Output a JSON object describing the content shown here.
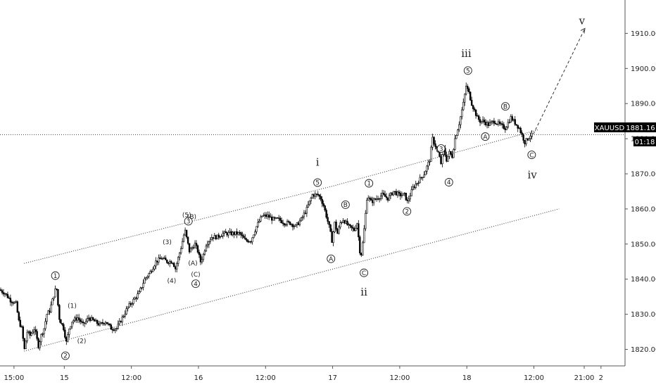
{
  "chart_data": {
    "type": "candlestick",
    "symbol": "XAUUSD",
    "price_badge": "1881.16",
    "timer_badge": "01:18",
    "y_ticks": [
      "1910.00",
      "1900.00",
      "1890.00",
      "1880.00",
      "1870.00",
      "1860.00",
      "1850.00",
      "1840.00",
      "1830.00",
      "1820.00"
    ],
    "y_tick_values": [
      1910,
      1900,
      1890,
      1880,
      1870,
      1860,
      1850,
      1840,
      1830,
      1820
    ],
    "ylim": [
      1815.3,
      1919.5
    ],
    "x_ticks": [
      "15:00",
      "15",
      "12:00",
      "16",
      "12:00",
      "17",
      "12:00",
      "18",
      "12:00",
      "21:00",
      "2"
    ],
    "x_tick_hours": [
      15,
      24,
      36,
      48,
      60,
      72,
      84,
      96,
      108,
      117,
      120
    ],
    "x_start_hour": 12.5,
    "current_price": 1881.16,
    "price_path": [
      [
        12.5,
        1837
      ],
      [
        13.5,
        1836
      ],
      [
        14.5,
        1834
      ],
      [
        15.5,
        1833
      ],
      [
        16,
        1828
      ],
      [
        16.5,
        1826
      ],
      [
        17,
        1820
      ],
      [
        17.5,
        1825
      ],
      [
        18,
        1824
      ],
      [
        18.8,
        1826
      ],
      [
        19.5,
        1821
      ],
      [
        20,
        1824
      ],
      [
        20.5,
        1826
      ],
      [
        21,
        1830
      ],
      [
        21.5,
        1831
      ],
      [
        22,
        1834
      ],
      [
        22.7,
        1838
      ],
      [
        23.2,
        1829
      ],
      [
        24,
        1826
      ],
      [
        24.5,
        1822
      ],
      [
        25,
        1826
      ],
      [
        25.5,
        1828
      ],
      [
        26.5,
        1829
      ],
      [
        27.5,
        1827
      ],
      [
        28.5,
        1829
      ],
      [
        29.5,
        1828
      ],
      [
        30.5,
        1827
      ],
      [
        31.5,
        1828
      ],
      [
        32.5,
        1826
      ],
      [
        33.5,
        1826
      ],
      [
        34.5,
        1829
      ],
      [
        35.5,
        1832
      ],
      [
        36.5,
        1834
      ],
      [
        37.5,
        1836
      ],
      [
        38.5,
        1840
      ],
      [
        39.5,
        1842
      ],
      [
        40.5,
        1845
      ],
      [
        41.5,
        1846
      ],
      [
        42.5,
        1845
      ],
      [
        43.5,
        1845
      ],
      [
        44,
        1843
      ],
      [
        45,
        1849
      ],
      [
        45.7,
        1854
      ],
      [
        46.5,
        1848
      ],
      [
        47.5,
        1850
      ],
      [
        48,
        1848
      ],
      [
        48.5,
        1845
      ],
      [
        49,
        1847
      ],
      [
        49.5,
        1850
      ],
      [
        50.5,
        1852
      ],
      [
        51.5,
        1852
      ],
      [
        52.5,
        1853
      ],
      [
        53.5,
        1853
      ],
      [
        54.5,
        1853
      ],
      [
        55.5,
        1853
      ],
      [
        56.5,
        1851
      ],
      [
        57.5,
        1851
      ],
      [
        58.5,
        1855
      ],
      [
        59.5,
        1858
      ],
      [
        60.5,
        1858
      ],
      [
        61.5,
        1857
      ],
      [
        62.5,
        1857
      ],
      [
        63.5,
        1856
      ],
      [
        64.5,
        1856
      ],
      [
        65.5,
        1855
      ],
      [
        66.5,
        1857
      ],
      [
        67.5,
        1860
      ],
      [
        68.5,
        1864
      ],
      [
        69.5,
        1864
      ],
      [
        70,
        1863
      ],
      [
        70.5,
        1861
      ],
      [
        71,
        1858
      ],
      [
        71.5,
        1855
      ],
      [
        72,
        1851
      ],
      [
        72.5,
        1856
      ],
      [
        73,
        1853
      ],
      [
        73.5,
        1856
      ],
      [
        74,
        1857
      ],
      [
        75,
        1855
      ],
      [
        76,
        1854
      ],
      [
        76.5,
        1856
      ],
      [
        77,
        1848
      ],
      [
        77.3,
        1847
      ],
      [
        77.8,
        1855
      ],
      [
        78.3,
        1864
      ],
      [
        79,
        1862
      ],
      [
        80,
        1863
      ],
      [
        81,
        1864
      ],
      [
        82,
        1863
      ],
      [
        83,
        1865
      ],
      [
        84,
        1864
      ],
      [
        85,
        1864
      ],
      [
        85.5,
        1862
      ],
      [
        86.5,
        1866
      ],
      [
        87.5,
        1868
      ],
      [
        88.5,
        1870
      ],
      [
        89.5,
        1874
      ],
      [
        90,
        1880
      ],
      [
        90.5,
        1878
      ],
      [
        91,
        1876
      ],
      [
        91.5,
        1873
      ],
      [
        92,
        1877
      ],
      [
        92.5,
        1874
      ],
      [
        93,
        1876
      ],
      [
        93.5,
        1875
      ],
      [
        94,
        1880
      ],
      [
        94.7,
        1884
      ],
      [
        95.5,
        1890
      ],
      [
        96,
        1895
      ],
      [
        96.5,
        1893
      ],
      [
        97,
        1890
      ],
      [
        97.5,
        1888
      ],
      [
        98,
        1886
      ],
      [
        98.5,
        1885
      ],
      [
        99,
        1885
      ],
      [
        100,
        1884
      ],
      [
        101,
        1885
      ],
      [
        102,
        1884
      ],
      [
        103,
        1883
      ],
      [
        104,
        1886
      ],
      [
        104.5,
        1885
      ],
      [
        105,
        1884
      ],
      [
        105.5,
        1883
      ],
      [
        106,
        1881
      ],
      [
        106.5,
        1879
      ],
      [
        107,
        1880
      ],
      [
        107.5,
        1881
      ]
    ],
    "channel_upper": [
      [
        16.8,
        1844.5
      ],
      [
        72,
        1866.5
      ],
      [
        108.7,
        1882.5
      ]
    ],
    "channel_lower": [
      [
        16.8,
        1819.5
      ],
      [
        112.5,
        1860
      ]
    ],
    "projection": [
      [
        107.5,
        1880
      ],
      [
        117,
        1911
      ]
    ],
    "annotations": {
      "circled": [
        {
          "text": "1",
          "t": 22.4,
          "p": 1841
        },
        {
          "text": "2",
          "t": 24.2,
          "p": 1818.2
        },
        {
          "text": "3",
          "t": 46.2,
          "p": 1856.5
        },
        {
          "text": "4",
          "t": 47.5,
          "p": 1838.7
        },
        {
          "text": "5",
          "t": 69.3,
          "p": 1867.5
        },
        {
          "text": "1",
          "t": 78.5,
          "p": 1867.3
        },
        {
          "text": "2",
          "t": 85.3,
          "p": 1859.3
        },
        {
          "text": "3",
          "t": 91.4,
          "p": 1877.2
        },
        {
          "text": "4",
          "t": 92.8,
          "p": 1867.6
        },
        {
          "text": "5",
          "t": 96.2,
          "p": 1899.4
        },
        {
          "text": "A",
          "t": 71.7,
          "p": 1845.8
        },
        {
          "text": "B",
          "t": 74.3,
          "p": 1861.2
        },
        {
          "text": "C",
          "t": 77.6,
          "p": 1841.8
        },
        {
          "text": "A",
          "t": 99.3,
          "p": 1880.6
        },
        {
          "text": "B",
          "t": 102.9,
          "p": 1889.2
        },
        {
          "text": "C",
          "t": 107.6,
          "p": 1875.4
        }
      ],
      "plain": [
        {
          "text": "(1)",
          "t": 25.4,
          "p": 1832.5
        },
        {
          "text": "(2)",
          "t": 27.1,
          "p": 1822.5
        },
        {
          "text": "(3)",
          "t": 42.4,
          "p": 1850.6
        },
        {
          "text": "(4)",
          "t": 43.2,
          "p": 1839.6
        },
        {
          "text": "(5)",
          "t": 45.9,
          "p": 1858.3
        },
        {
          "text": "(B)",
          "t": 46.8,
          "p": 1857.8
        },
        {
          "text": "(A)",
          "t": 47,
          "p": 1844.6
        },
        {
          "text": "(C)",
          "t": 47.5,
          "p": 1841.4
        }
      ],
      "roman": [
        {
          "text": "i",
          "t": 69.3,
          "p": 1873.3
        },
        {
          "text": "ii",
          "t": 77.6,
          "p": 1836.3
        },
        {
          "text": "iii",
          "t": 95.9,
          "p": 1904.3
        },
        {
          "text": "iv",
          "t": 107.7,
          "p": 1869.7
        },
        {
          "text": "v",
          "t": 116.6,
          "p": 1913.6
        }
      ]
    },
    "grid": false,
    "colors": {
      "candle": "#000000",
      "badge_bg": "#000000",
      "badge_text": "#ffffff",
      "line": "#333333"
    }
  }
}
